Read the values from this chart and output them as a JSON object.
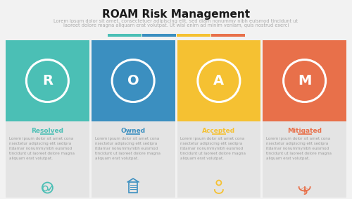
{
  "title": "ROAM Risk Management",
  "subtitle_line1": "Lorem ipsum dolor sit amet, consectetuer adipiscing elit, sed diam nonummy nibh euismod tincidunt ut",
  "subtitle_line2": "laoreet dolore magna aliquam erat volutpat. Ut wisi enim ad minim veniam, quis nostrud exerci",
  "bg_color": "#f2f2f2",
  "separator_colors": [
    "#4bbfb5",
    "#3b8fc0",
    "#f5c132",
    "#e8704a"
  ],
  "box_colors": [
    "#4bbfb5",
    "#3b8fc0",
    "#f5c132",
    "#e8704a"
  ],
  "letters": [
    "R",
    "O",
    "A",
    "M"
  ],
  "labels": [
    "Resolved",
    "Owned",
    "Accepted",
    "Mitigated"
  ],
  "label_colors": [
    "#4bbfb5",
    "#3b8fc0",
    "#f5c132",
    "#e8704a"
  ],
  "body_text": "Lorem ipsum dolor sit amet cona\nnsectetur adipiscing elit sedipra\nitdamar nonummynibh euismod\ntincidunt ut laoreet dolore magna\naliquam erat volutpat.",
  "card_bg": "#e4e4e4",
  "title_fontsize": 11,
  "subtitle_fontsize": 4.8,
  "label_fontsize": 6.5,
  "body_fontsize": 4.0,
  "letter_fontsize": 14
}
